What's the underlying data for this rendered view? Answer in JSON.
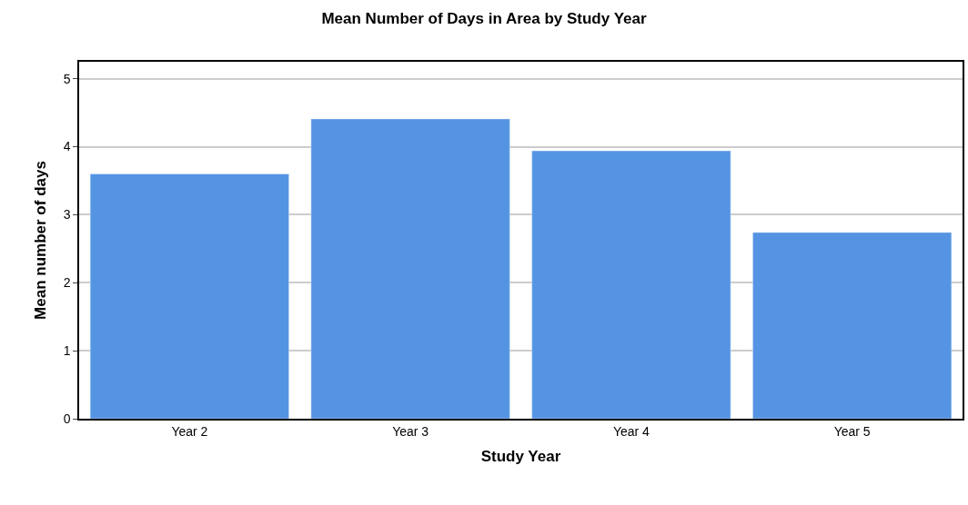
{
  "chart_data": {
    "type": "bar",
    "title": "Mean Number of Days in Area by Study Year",
    "xlabel": "Study Year",
    "ylabel": "Mean number of days",
    "categories": [
      "Year 2",
      "Year 3",
      "Year 4",
      "Year 5"
    ],
    "values": [
      3.6,
      4.41,
      3.94,
      2.74
    ],
    "color": "#5594e3",
    "ylim": [
      0,
      5.25
    ],
    "yticks": [
      0,
      1,
      2,
      3,
      4,
      5
    ],
    "grid": "y",
    "legend": false
  }
}
